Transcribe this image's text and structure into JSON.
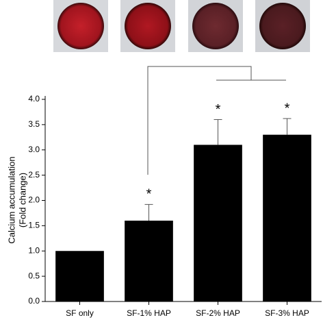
{
  "chart_data": {
    "type": "bar",
    "y_label": [
      "Calcium accumulation",
      "(Fold change)"
    ],
    "categories": [
      "SF only",
      "SF-1% HAP",
      "SF-2% HAP",
      "SF-3% HAP"
    ],
    "values": [
      1.0,
      1.6,
      3.1,
      3.3
    ],
    "errors": [
      null,
      0.32,
      0.5,
      0.32
    ],
    "value_annotations": [
      null,
      "*",
      "*",
      "*"
    ],
    "color": "#000000",
    "ylim": [
      0,
      4.0
    ],
    "yticks": [
      {
        "value": 0,
        "label": "0.0"
      },
      {
        "value": 0.5,
        "label": "0.5"
      },
      {
        "value": 1,
        "label": "1.0"
      },
      {
        "value": 1.5,
        "label": "1.5"
      },
      {
        "value": 2,
        "label": "2.0"
      },
      {
        "value": 2.5,
        "label": "2.5"
      },
      {
        "value": 3,
        "label": "3.0"
      },
      {
        "value": 3.5,
        "label": "3.5"
      },
      {
        "value": 4,
        "label": "4.0"
      }
    ],
    "grid": false
  }
}
